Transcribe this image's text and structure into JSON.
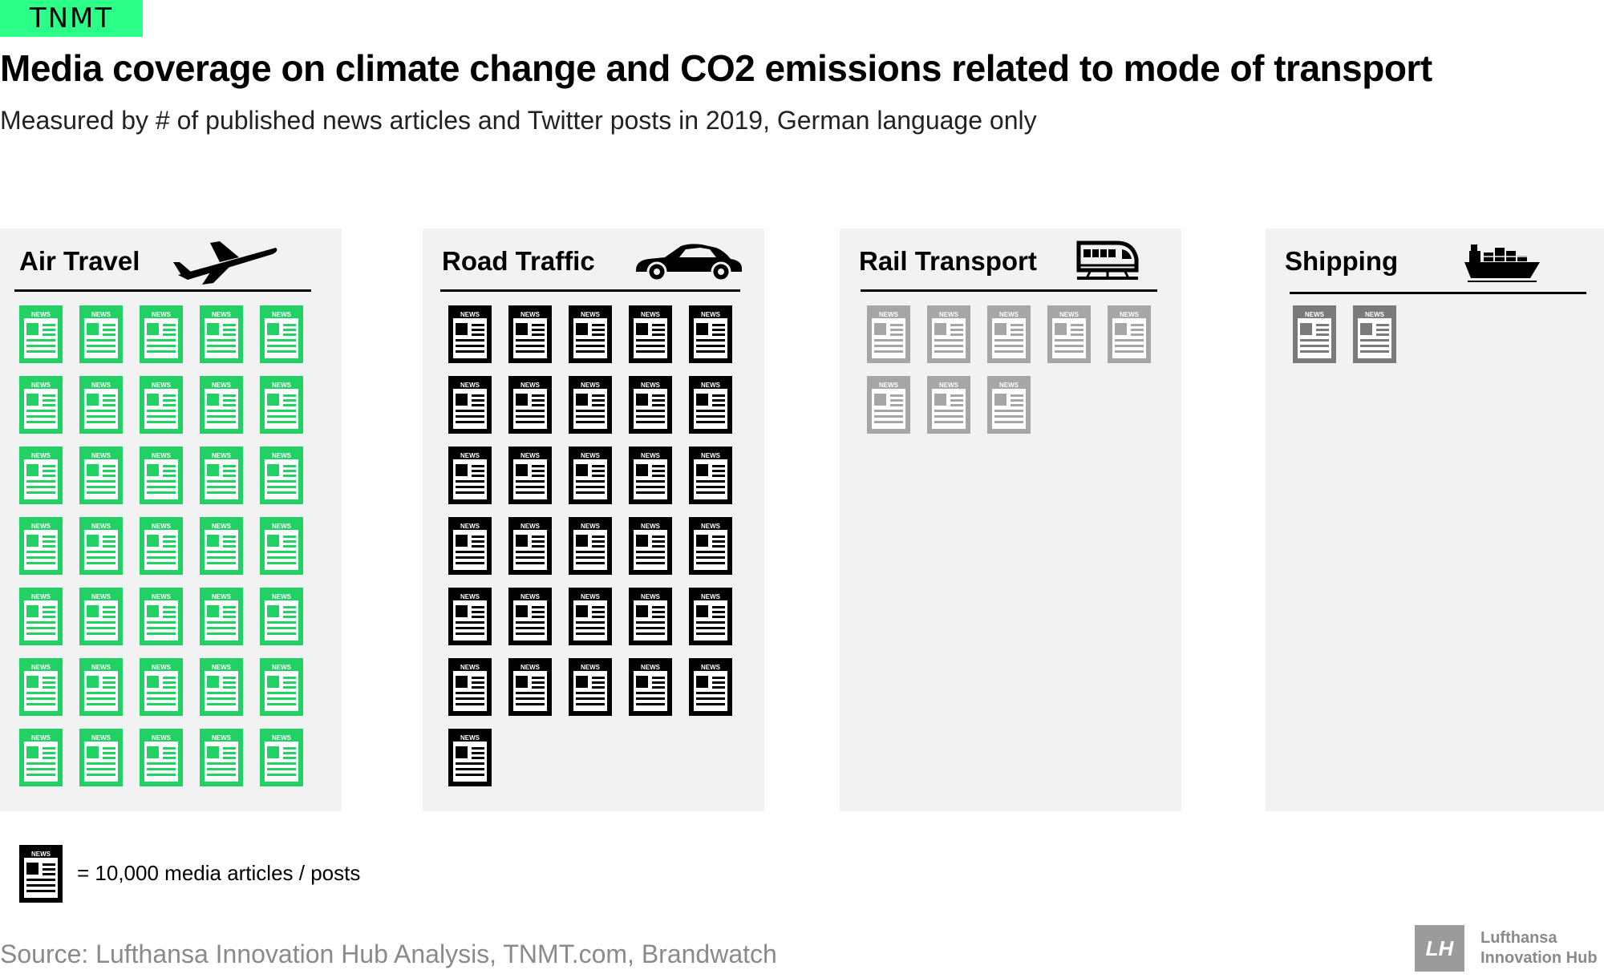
{
  "brand": {
    "logo_text": "TNMT"
  },
  "chart_data": {
    "type": "pictogram",
    "title": "Media coverage on climate change and CO2 emissions related to mode of transport",
    "subtitle": "Measured by # of published news articles and Twitter posts in 2019, German language only",
    "unit_value": 10000,
    "categories": [
      "Air Travel",
      "Road Traffic",
      "Rail Transport",
      "Shipping"
    ],
    "values": [
      350000,
      310000,
      80000,
      20000
    ],
    "icon_counts": [
      35,
      31,
      8,
      2
    ],
    "icon_label": "NEWS",
    "colors": [
      "#22d164",
      "#000000",
      "#a6a6a6",
      "#7a7a7a"
    ],
    "panel_icons": [
      "airplane-icon",
      "car-icon",
      "train-icon",
      "cargo-ship-icon"
    ],
    "legend": {
      "text": "= 10,000 media articles / posts",
      "icon": "newspaper-icon",
      "color": "#000000"
    }
  },
  "footer": {
    "source": "Source: Lufthansa Innovation Hub Analysis, TNMT.com, Brandwatch",
    "logo_mark": "LH",
    "logo_line1": "Lufthansa",
    "logo_line2": "Innovation Hub"
  }
}
